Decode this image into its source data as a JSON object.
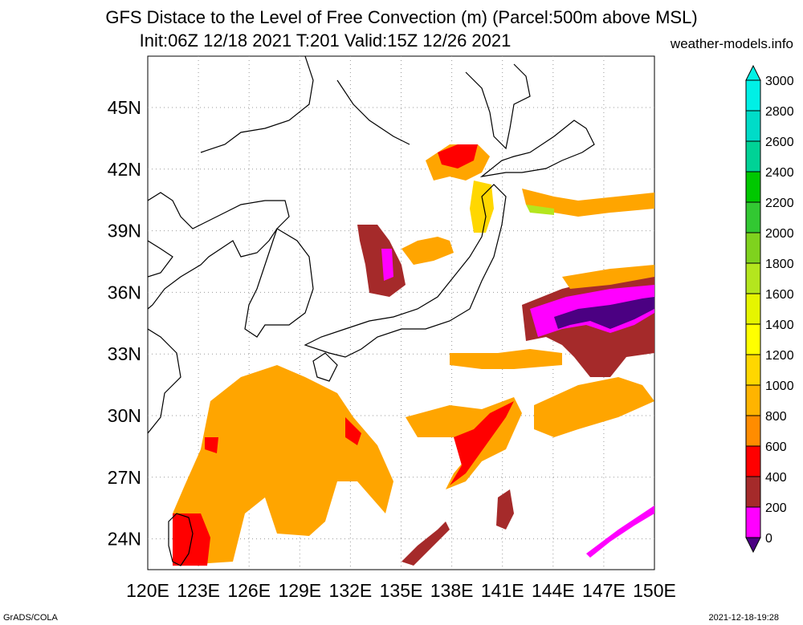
{
  "header": {
    "title_line1": "GFS Distace to the Level of Free Convection (m) (Parcel:500m above MSL)",
    "title_line2": "Init:06Z 12/18 2021 T:201 Valid:15Z 12/26 2021",
    "site": "weather-models.info"
  },
  "footer": {
    "left": "GrADS/COLA",
    "right": "2021-12-18-19:28"
  },
  "map": {
    "lon_labels": [
      "120E",
      "123E",
      "126E",
      "129E",
      "132E",
      "135E",
      "138E",
      "141E",
      "144E",
      "147E",
      "150E"
    ],
    "lat_labels": [
      "24N",
      "27N",
      "30N",
      "33N",
      "36N",
      "39N",
      "42N",
      "45N"
    ],
    "lon_range": [
      120,
      150
    ],
    "lat_range": [
      22.5,
      47.5
    ],
    "grid": true
  },
  "colorbar": {
    "levels": [
      "0",
      "200",
      "400",
      "600",
      "800",
      "1000",
      "1200",
      "1400",
      "1600",
      "1800",
      "2000",
      "2200",
      "2400",
      "2600",
      "2800",
      "3000"
    ],
    "colors": [
      "#4b0082",
      "#ff00ff",
      "#a52a2a",
      "#ff0000",
      "#ff8c00",
      "#ffb400",
      "#ffd700",
      "#ffff00",
      "#e6f500",
      "#b4e61e",
      "#7fd21e",
      "#32c832",
      "#00c800",
      "#00d296",
      "#00dcc8",
      "#00f0e6"
    ]
  }
}
